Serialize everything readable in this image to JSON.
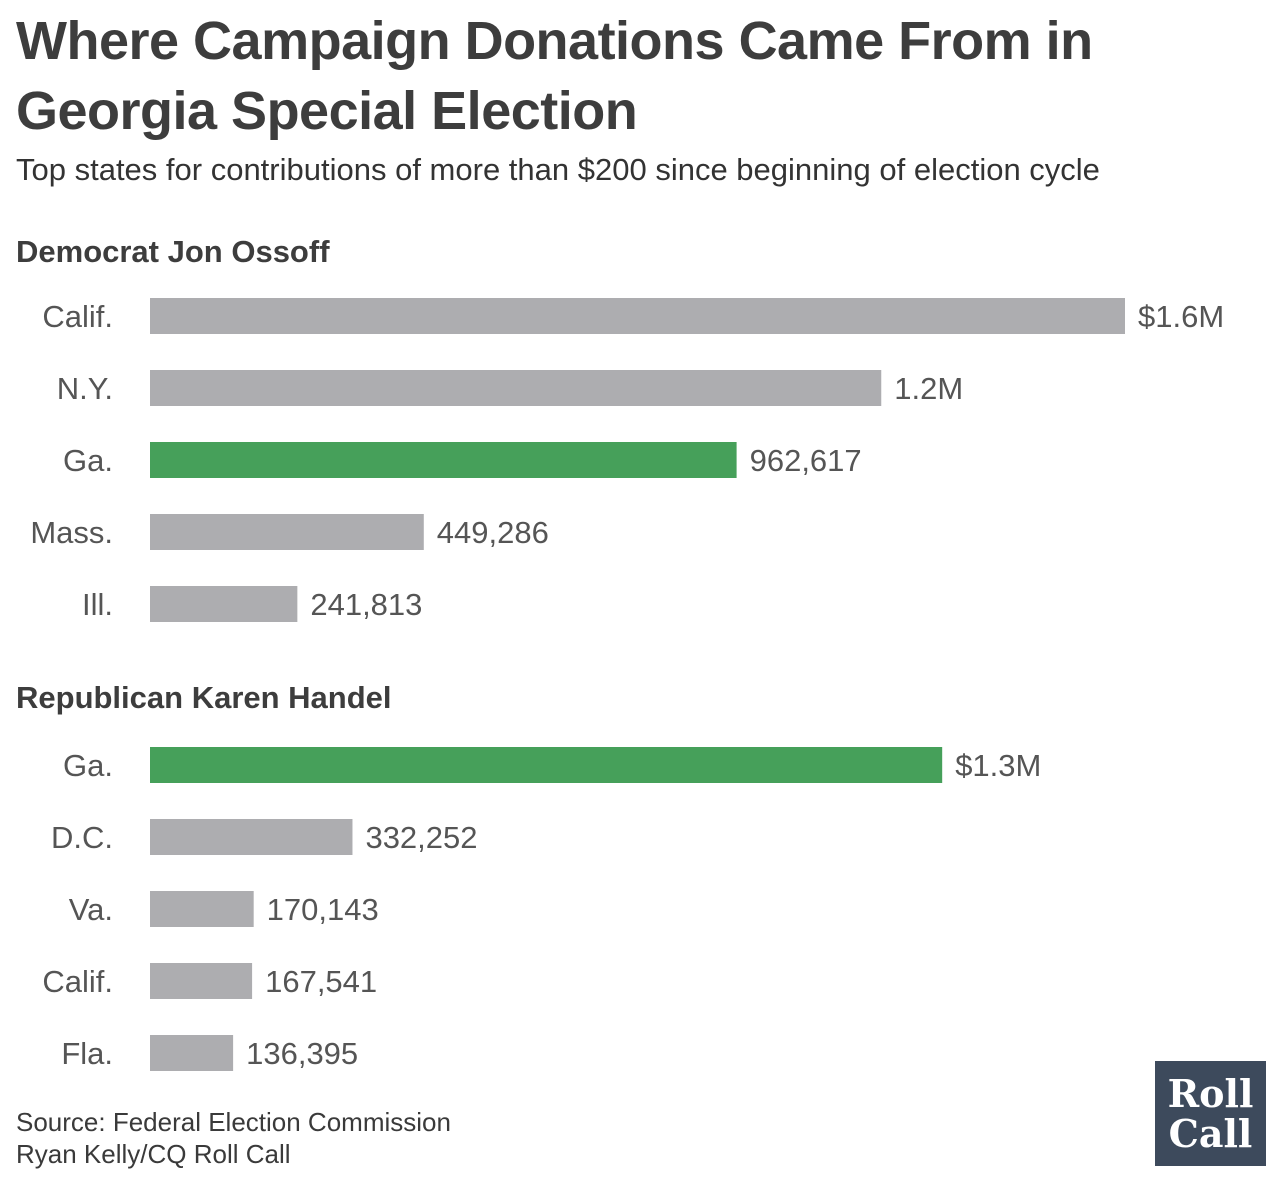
{
  "title": "Where Campaign Donations Came From in Georgia Special Election",
  "subtitle": "Top states for contributions of more than $200 since beginning of election cycle",
  "colors": {
    "bar": "#adadb0",
    "highlight": "#46a05a",
    "text": "#333333",
    "logo_bg": "#3d4a5c"
  },
  "chart_data": [
    {
      "type": "bar",
      "orientation": "horizontal",
      "title": "Democrat Jon Ossoff",
      "categories": [
        "Calif.",
        "N.Y.",
        "Ga.",
        "Mass.",
        "Ill."
      ],
      "values": [
        1600000,
        1200000,
        962617,
        449286,
        241813
      ],
      "value_labels": [
        "$1.6M",
        "1.2M",
        "962,617",
        "449,286",
        "241,813"
      ],
      "highlight": [
        "Ga."
      ]
    },
    {
      "type": "bar",
      "orientation": "horizontal",
      "title": "Republican Karen Handel",
      "categories": [
        "Ga.",
        "D.C.",
        "Va.",
        "Calif.",
        "Fla."
      ],
      "values": [
        1300000,
        332252,
        170143,
        167541,
        136395
      ],
      "value_labels": [
        "$1.3M",
        "332,252",
        "170,143",
        "167,541",
        "136,395"
      ],
      "highlight": [
        "Ga."
      ]
    }
  ],
  "source": "Source: Federal Election Commission",
  "credit": "Ryan Kelly/CQ Roll Call",
  "logo": {
    "line1": "Roll",
    "line2": "Call"
  }
}
